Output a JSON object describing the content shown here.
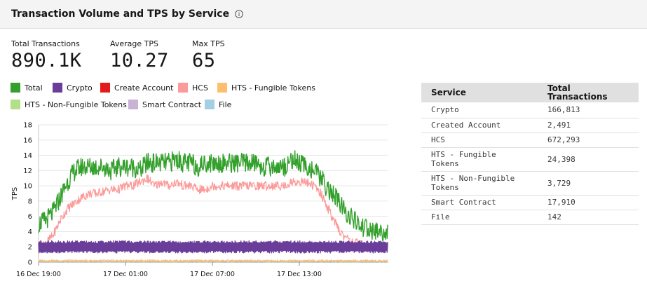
{
  "header": {
    "title": "Transaction Volume and TPS by Service",
    "info_icon": "info-icon"
  },
  "stats": [
    {
      "label": "Total Transactions",
      "value": "890.1K"
    },
    {
      "label": "Average TPS",
      "value": "10.27"
    },
    {
      "label": "Max TPS",
      "value": "65"
    }
  ],
  "legend": [
    {
      "name": "Total",
      "color": "#33a02c"
    },
    {
      "name": "Crypto",
      "color": "#6a3d9a"
    },
    {
      "name": "Create Account",
      "color": "#e31a1c"
    },
    {
      "name": "HCS",
      "color": "#fb9a99"
    },
    {
      "name": "HTS - Fungible Tokens",
      "color": "#fdbf6f"
    },
    {
      "name": "HTS - Non-Fungible Tokens",
      "color": "#b2df8a"
    },
    {
      "name": "Smart Contract",
      "color": "#cab2d6"
    },
    {
      "name": "File",
      "color": "#a6cee3"
    }
  ],
  "table": {
    "headers": [
      "Service",
      "Total Transactions"
    ],
    "rows": [
      [
        "Crypto",
        "166,813"
      ],
      [
        "Created Account",
        "2,491"
      ],
      [
        "HCS",
        "672,293"
      ],
      [
        "HTS - Fungible Tokens",
        "24,398"
      ],
      [
        "HTS - Non-Fungible Tokens",
        "3,729"
      ],
      [
        "Smart Contract",
        "17,910"
      ],
      [
        "File",
        "142"
      ]
    ]
  },
  "chart_data": {
    "type": "line",
    "ylabel": "TPS",
    "xlabel": "",
    "ylim": [
      0,
      18
    ],
    "yticks": [
      0,
      2,
      4,
      6,
      8,
      10,
      12,
      14,
      16,
      18
    ],
    "xticks": [
      {
        "label": "16 Dec 19:00",
        "hour": 19
      },
      {
        "label": "17 Dec 01:00",
        "hour": 25
      },
      {
        "label": "17 Dec 07:00",
        "hour": 31
      },
      {
        "label": "17 Dec 13:00",
        "hour": 37
      }
    ],
    "xlim": [
      19,
      43.1
    ],
    "grid": true,
    "series": [
      {
        "name": "Total",
        "color": "#33a02c",
        "hour": [
          19,
          19.5,
          20,
          20.5,
          21,
          21.5,
          22,
          22.5,
          23,
          23.5,
          24,
          24.5,
          25,
          25.5,
          26,
          26.5,
          27,
          27.5,
          28,
          28.5,
          29,
          29.5,
          30,
          30.5,
          31,
          31.5,
          32,
          32.5,
          33,
          33.5,
          34,
          34.5,
          35,
          35.5,
          36,
          36.5,
          37,
          37.5,
          38,
          38.5,
          39,
          39.5,
          40,
          40.5,
          41,
          41.5,
          42,
          42.5,
          43
        ],
        "values": [
          5.0,
          5.5,
          6.5,
          8.5,
          10.5,
          12.0,
          12.5,
          12.5,
          12.5,
          12.5,
          12.0,
          12.5,
          12.5,
          12.5,
          12.0,
          13.0,
          13.0,
          13.0,
          13.0,
          13.5,
          13.0,
          13.0,
          12.5,
          13.0,
          13.0,
          13.0,
          13.0,
          13.0,
          13.0,
          13.0,
          13.0,
          12.5,
          12.5,
          12.5,
          12.5,
          13.5,
          13.0,
          12.5,
          12.0,
          11.0,
          9.5,
          8.5,
          7.0,
          6.0,
          5.0,
          4.5,
          4.0,
          4.0,
          3.8
        ]
      },
      {
        "name": "HCS",
        "color": "#fb9a99",
        "hour": [
          19,
          19.5,
          20,
          20.5,
          21,
          21.5,
          22,
          22.5,
          23,
          23.5,
          24,
          24.5,
          25,
          25.5,
          26,
          26.5,
          27,
          27.5,
          28,
          28.5,
          29,
          29.5,
          30,
          30.5,
          31,
          31.5,
          32,
          32.5,
          33,
          33.5,
          34,
          34.5,
          35,
          35.5,
          36,
          36.5,
          37,
          37.5,
          38,
          38.5,
          39,
          39.5,
          40,
          40.5,
          41,
          41.5,
          42,
          42.5,
          43
        ],
        "values": [
          2.0,
          2.5,
          3.5,
          5.5,
          7.0,
          7.8,
          8.5,
          9.0,
          9.0,
          9.3,
          9.5,
          9.5,
          10.0,
          10.0,
          10.5,
          11.0,
          10.0,
          10.5,
          10.0,
          10.5,
          10.0,
          10.0,
          9.5,
          9.5,
          10.0,
          10.0,
          10.0,
          10.0,
          10.0,
          10.0,
          10.0,
          10.0,
          10.0,
          10.0,
          10.0,
          10.5,
          10.5,
          10.5,
          10.0,
          9.0,
          7.0,
          5.0,
          3.5,
          3.0,
          2.5,
          2.0,
          2.0,
          2.0,
          2.0
        ]
      },
      {
        "name": "Crypto",
        "color": "#6a3d9a",
        "hour": [
          19,
          43
        ],
        "values": [
          2.0,
          2.0
        ]
      },
      {
        "name": "HTS - Fungible Tokens",
        "color": "#fdbf6f",
        "hour": [
          19,
          43
        ],
        "values": [
          0.2,
          0.2
        ]
      },
      {
        "name": "Smart Contract",
        "color": "#cab2d6",
        "hour": [
          19,
          43
        ],
        "values": [
          0.1,
          0.1
        ]
      },
      {
        "name": "HTS - Non-Fungible Tokens",
        "color": "#b2df8a",
        "hour": [
          19,
          43
        ],
        "values": [
          0.05,
          0.05
        ]
      }
    ]
  }
}
